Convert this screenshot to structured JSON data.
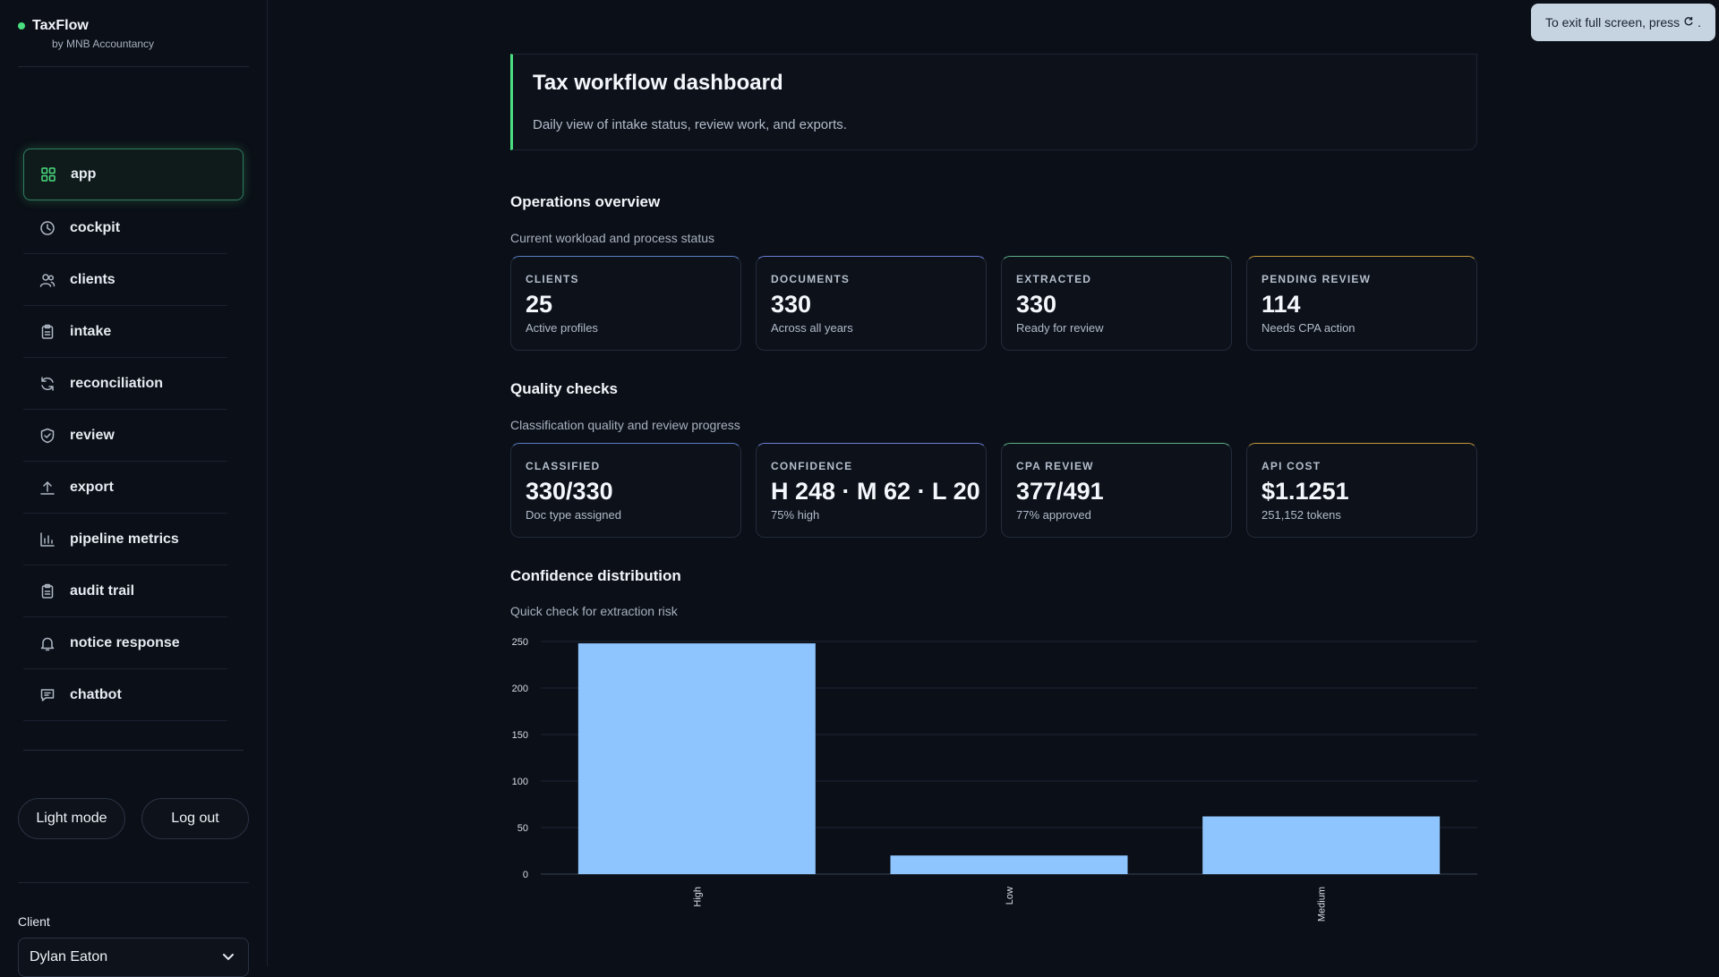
{
  "brand": {
    "name": "TaxFlow",
    "subtitle": "by MNB Accountancy"
  },
  "nav": [
    {
      "label": "app",
      "icon": "grid-icon",
      "active": true
    },
    {
      "label": "cockpit",
      "icon": "clock-icon"
    },
    {
      "label": "clients",
      "icon": "users-icon"
    },
    {
      "label": "intake",
      "icon": "clipboard-icon"
    },
    {
      "label": "reconciliation",
      "icon": "refresh-icon"
    },
    {
      "label": "review",
      "icon": "shield-icon"
    },
    {
      "label": "export",
      "icon": "upload-icon"
    },
    {
      "label": "pipeline metrics",
      "icon": "bar-chart-icon"
    },
    {
      "label": "audit trail",
      "icon": "clipboard-icon"
    },
    {
      "label": "notice response",
      "icon": "bell-icon"
    },
    {
      "label": "chatbot",
      "icon": "message-icon"
    }
  ],
  "buttons": {
    "light_mode": "Light mode",
    "logout": "Log out"
  },
  "client": {
    "label": "Client",
    "selected": "Dylan Eaton"
  },
  "hero": {
    "title": "Tax workflow dashboard",
    "subtitle": "Daily view of intake status, review work, and exports."
  },
  "operations": {
    "title": "Operations overview",
    "subtitle": "Current workload and process status",
    "cards": [
      {
        "label": "CLIENTS",
        "value": "25",
        "note": "Active profiles"
      },
      {
        "label": "DOCUMENTS",
        "value": "330",
        "note": "Across all years"
      },
      {
        "label": "EXTRACTED",
        "value": "330",
        "note": "Ready for review"
      },
      {
        "label": "PENDING REVIEW",
        "value": "114",
        "note": "Needs CPA action"
      }
    ]
  },
  "quality": {
    "title": "Quality checks",
    "subtitle": "Classification quality and review progress",
    "cards": [
      {
        "label": "CLASSIFIED",
        "value": "330/330",
        "note": "Doc type assigned"
      },
      {
        "label": "CONFIDENCE",
        "value": "H 248 · M 62 · L 20",
        "note": "75% high"
      },
      {
        "label": "CPA REVIEW",
        "value": "377/491",
        "note": "77% approved"
      },
      {
        "label": "API COST",
        "value": "$1.1251",
        "note": "251,152 tokens"
      }
    ]
  },
  "distribution": {
    "title": "Confidence distribution",
    "subtitle": "Quick check for extraction risk"
  },
  "chart_data": {
    "type": "bar",
    "categories": [
      "High",
      "Low",
      "Medium"
    ],
    "values": [
      248,
      20,
      62
    ],
    "ylim": [
      0,
      250
    ],
    "yticks": [
      "0",
      "50",
      "100",
      "150",
      "200",
      "250"
    ],
    "bar_color": "#8ec5ff",
    "grid": true
  },
  "toast": {
    "text": "To exit full screen, press",
    "icon": "esc-key-icon"
  }
}
